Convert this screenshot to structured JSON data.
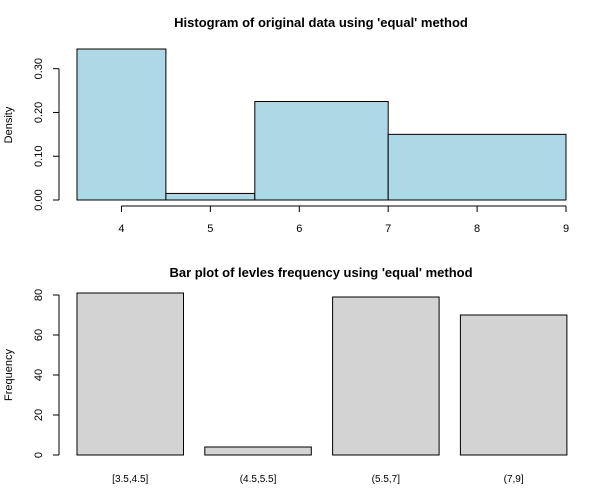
{
  "chart_data": [
    {
      "type": "bar",
      "subtype": "histogram",
      "title": "Histogram of original data using 'equal' method",
      "xlabel": "",
      "ylabel": "Density",
      "bins": [
        {
          "x0": 3.5,
          "x1": 4.5,
          "value": 0.345
        },
        {
          "x0": 4.5,
          "x1": 5.5,
          "value": 0.015
        },
        {
          "x0": 5.5,
          "x1": 7.0,
          "value": 0.225
        },
        {
          "x0": 7.0,
          "x1": 9.0,
          "value": 0.15
        }
      ],
      "xticks": [
        "4",
        "5",
        "6",
        "7",
        "8",
        "9"
      ],
      "yticks": [
        "0.00",
        "0.10",
        "0.20",
        "0.30"
      ],
      "xlim": [
        3.5,
        9
      ],
      "ylim": [
        0,
        0.345
      ],
      "color": "#add8e6"
    },
    {
      "type": "bar",
      "title": "Bar plot of levles frequency using 'equal' method",
      "xlabel": "",
      "ylabel": "Frequency",
      "categories": [
        "[3.5,4.5]",
        "(4.5,5.5]",
        "(5.5,7]",
        "(7,9]"
      ],
      "values": [
        81,
        4,
        79,
        70
      ],
      "yticks": [
        "0",
        "20",
        "40",
        "60",
        "80"
      ],
      "ylim": [
        0,
        81
      ],
      "color": "#d3d3d3"
    }
  ]
}
